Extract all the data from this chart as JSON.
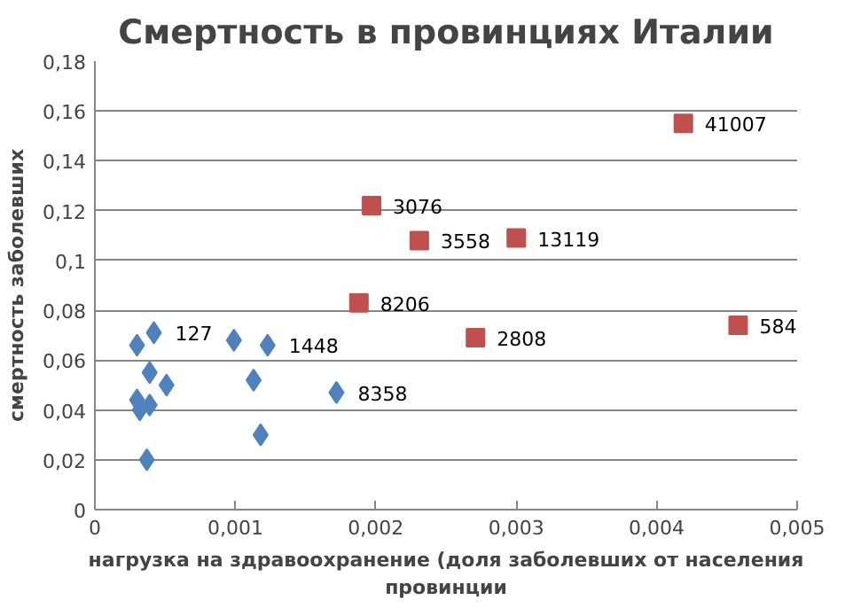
{
  "chart_data": {
    "type": "scatter",
    "title": "Смертность в провинциях Италии",
    "xlabel": "нагрузка на здравоохранение (доля заболевших от населения провинции",
    "ylabel": "смертность заболевших",
    "series": [
      {
        "color": "#4f81bd",
        "marker": "diamond",
        "x": [
          0.0003,
          0.00042,
          0.00039,
          0.00051,
          0.0003,
          0.00032,
          0.00039,
          0.00037,
          0.00099,
          0.00123,
          0.00113,
          0.00118,
          0.00172
        ],
        "values": [
          0.066,
          0.071,
          0.055,
          0.05,
          0.044,
          0.04,
          0.042,
          0.02,
          0.068,
          0.066,
          0.052,
          0.03,
          0.047
        ]
      },
      {
        "color": "#c0504d",
        "marker": "square",
        "x": [
          0.00419,
          0.00197,
          0.00231,
          0.003,
          0.00188,
          0.00271,
          0.00458
        ],
        "values": [
          0.155,
          0.122,
          0.108,
          0.109,
          0.083,
          0.069,
          0.074
        ]
      }
    ],
    "annotations": [
      {
        "text": "127",
        "x": 0.00042,
        "y": 0.071
      },
      {
        "text": "1448",
        "x": 0.00123,
        "y": 0.066
      },
      {
        "text": "8358",
        "x": 0.00172,
        "y": 0.047
      },
      {
        "text": "41007",
        "x": 0.00419,
        "y": 0.155
      },
      {
        "text": "3076",
        "x": 0.00197,
        "y": 0.122
      },
      {
        "text": "3558",
        "x": 0.00231,
        "y": 0.108
      },
      {
        "text": "13119",
        "x": 0.003,
        "y": 0.109
      },
      {
        "text": "8206",
        "x": 0.00188,
        "y": 0.083
      },
      {
        "text": "2808",
        "x": 0.00271,
        "y": 0.069
      },
      {
        "text": "584",
        "x": 0.00458,
        "y": 0.074
      }
    ],
    "xlim": [
      0,
      0.005
    ],
    "ylim": [
      0,
      0.18
    ],
    "xticks": [
      0,
      {
        "value": 0.001,
        "label": "0,001"
      },
      {
        "value": 0.002,
        "label": "0,002"
      },
      {
        "value": 0.003,
        "label": "0,003"
      },
      {
        "value": 0.004,
        "label": "0,004"
      },
      {
        "value": 0.005,
        "label": "0,005"
      }
    ],
    "yticks": [
      0,
      {
        "value": 0.02,
        "label": "0,02"
      },
      {
        "value": 0.04,
        "label": "0,04"
      },
      {
        "value": 0.06,
        "label": "0,06"
      },
      {
        "value": 0.08,
        "label": "0,08"
      },
      {
        "value": 0.1,
        "label": "0,1"
      },
      {
        "value": 0.12,
        "label": "0,12"
      },
      {
        "value": 0.14,
        "label": "0,14"
      },
      {
        "value": 0.16,
        "label": "0,16"
      },
      {
        "value": 0.18,
        "label": "0,18"
      }
    ],
    "grid": "y"
  }
}
